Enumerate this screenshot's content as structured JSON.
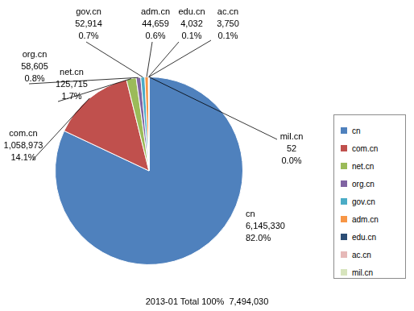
{
  "chart_data": {
    "type": "pie",
    "categories": [
      "cn",
      "com.cn",
      "net.cn",
      "org.cn",
      "gov.cn",
      "adm.cn",
      "edu.cn",
      "ac.cn",
      "mil.cn"
    ],
    "values": [
      6145330,
      1058973,
      125715,
      58605,
      52914,
      44659,
      4032,
      3750,
      52
    ],
    "value_labels": [
      "6,145,330",
      "1,058,973",
      "125,715",
      "58,605",
      "52,914",
      "44,659",
      "4,032",
      "3,750",
      "52"
    ],
    "percent_labels": [
      "82.0%",
      "14.1%",
      "1.7%",
      "0.8%",
      "0.7%",
      "0.6%",
      "0.1%",
      "0.1%",
      "0.0%"
    ],
    "colors": [
      "#4f81bd",
      "#c0504d",
      "#9bbb59",
      "#8064a2",
      "#4bacc6",
      "#f79646",
      "#2c4d75",
      "#e6b9b8",
      "#d7e4bd"
    ],
    "data_labels": true,
    "legend": "right",
    "caption": "2013-01 Total 100%  7,494,030"
  }
}
